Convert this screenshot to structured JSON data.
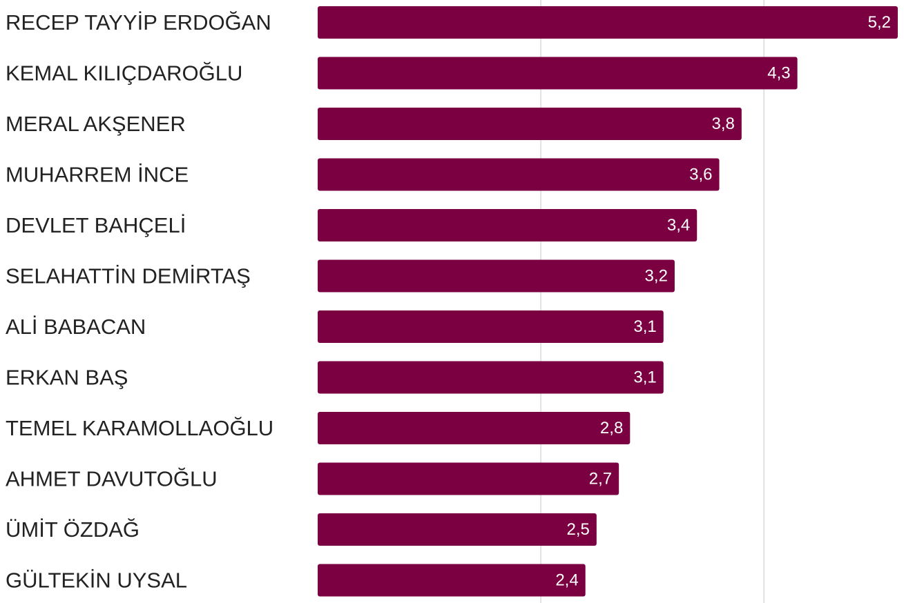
{
  "chart_data": {
    "type": "bar",
    "orientation": "horizontal",
    "categories": [
      "RECEP TAYYİP ERDOĞAN",
      "KEMAL KILIÇDAROĞLU",
      "MERAL AKŞENER",
      "MUHARREM İNCE",
      "DEVLET BAHÇELİ",
      "SELAHATTİN DEMİRTAŞ",
      "ALİ BABACAN",
      "ERKAN BAŞ",
      "TEMEL KARAMOLLAOĞLU",
      "AHMET DAVUTOĞLU",
      "ÜMİT ÖZDAĞ",
      "GÜLTEKİN UYSAL"
    ],
    "values": [
      5.2,
      4.3,
      3.8,
      3.6,
      3.4,
      3.2,
      3.1,
      3.1,
      2.8,
      2.7,
      2.5,
      2.4
    ],
    "value_labels": [
      "5,2",
      "4,3",
      "3,8",
      "3,6",
      "3,4",
      "3,2",
      "3,1",
      "3,1",
      "2,8",
      "2,7",
      "2,5",
      "2,4"
    ],
    "xlim": [
      0,
      5.2
    ],
    "gridlines": [
      2,
      4
    ],
    "grid": true,
    "bar_color": "#7a0042",
    "grid_color": "#d9d9d9"
  }
}
